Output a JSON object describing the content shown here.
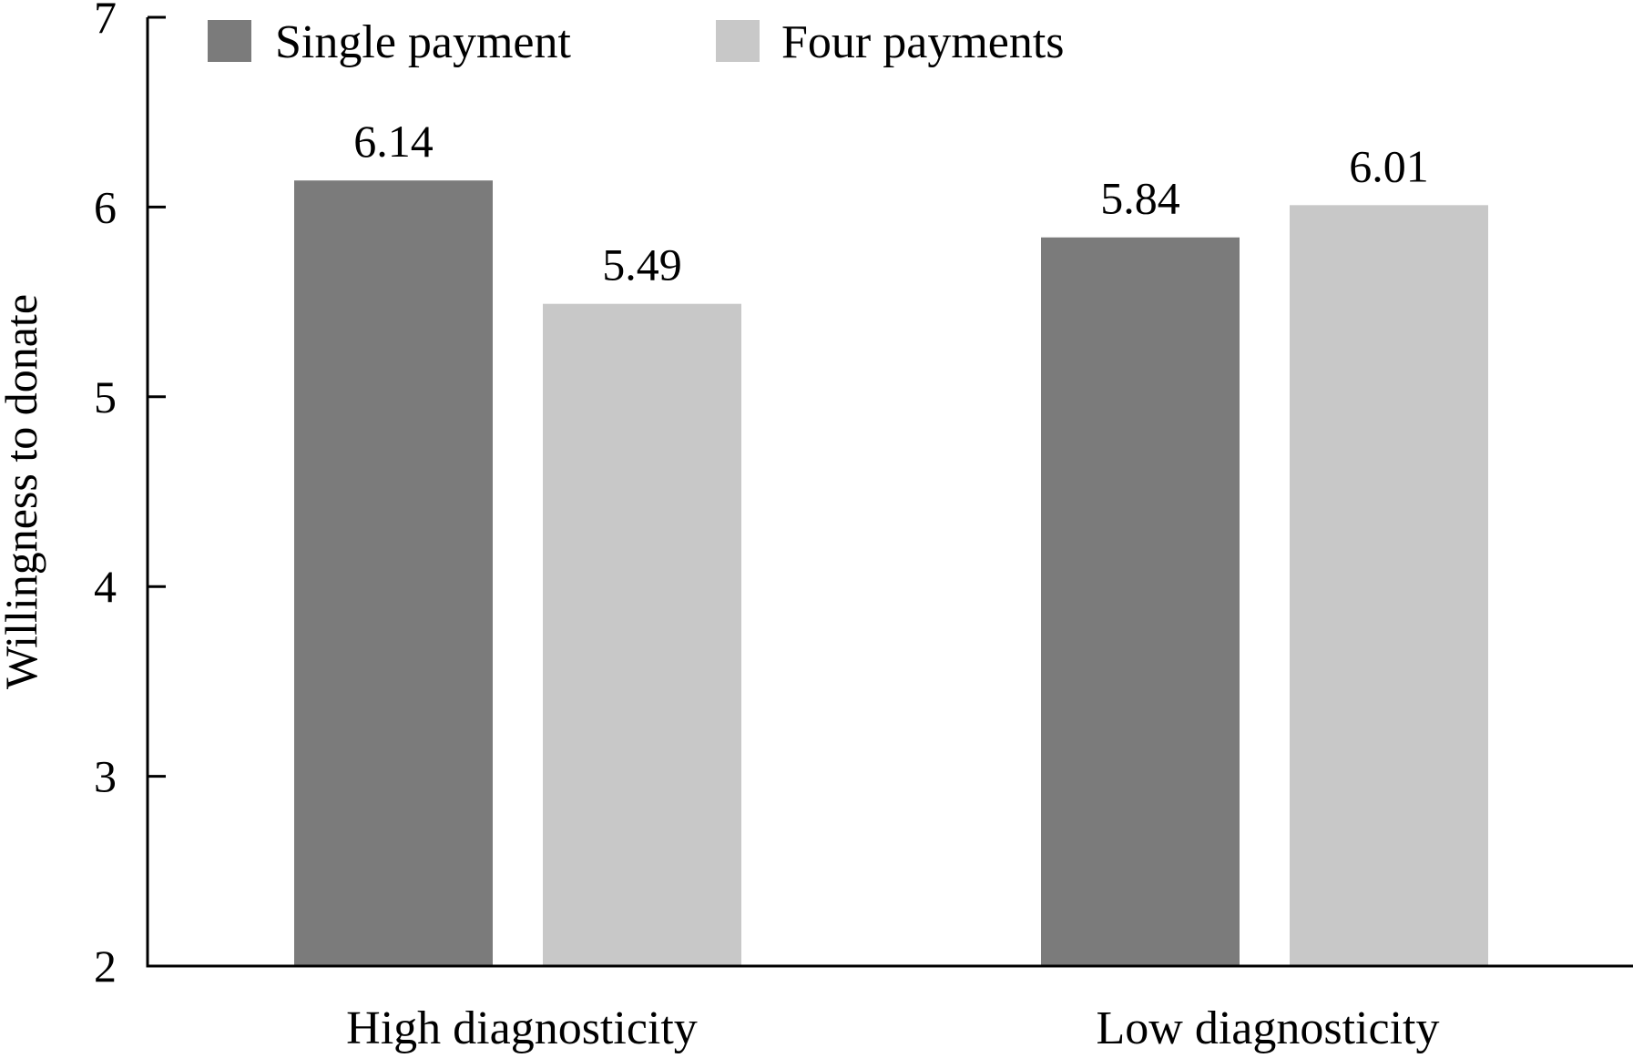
{
  "chart_data": {
    "type": "bar",
    "categories": [
      "High diagnosticity",
      "Low diagnosticity"
    ],
    "series": [
      {
        "name": "Single payment",
        "values": [
          6.14,
          5.84
        ],
        "color": "#7b7b7b"
      },
      {
        "name": "Four payments",
        "values": [
          5.49,
          6.01
        ],
        "color": "#c8c8c8"
      }
    ],
    "data_labels": [
      [
        "6.14",
        "5.84"
      ],
      [
        "5.49",
        "6.01"
      ]
    ],
    "ylabel": "Willingness to donate",
    "xlabel": "",
    "ylim": [
      2,
      7
    ],
    "yticks": [
      2,
      3,
      4,
      5,
      6,
      7
    ],
    "grid": false,
    "legend_position": "top-left"
  }
}
